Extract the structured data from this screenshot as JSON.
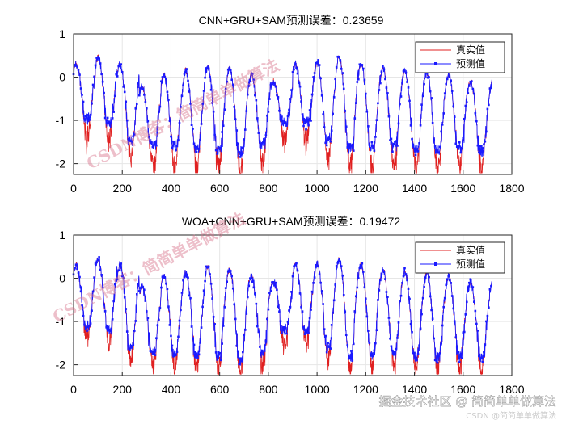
{
  "chart_data": [
    {
      "type": "line",
      "title": "CNN+GRU+SAM预测误差：0.23659",
      "xlim": [
        0,
        1800
      ],
      "ylim": [
        -2.25,
        1
      ],
      "xticks": [
        0,
        200,
        400,
        600,
        800,
        1000,
        1200,
        1400,
        1600,
        1800
      ],
      "yticks": [
        -2,
        -1,
        0,
        1
      ],
      "grid": true,
      "legend_position": "top-right",
      "series": [
        {
          "name": "真实值",
          "color": "#e02020",
          "marker": "none",
          "role": "actual"
        },
        {
          "name": "预测值",
          "color": "#1a1aff",
          "marker": "square",
          "role": "predicted",
          "low_bias": 0.45
        }
      ],
      "seasonal_cycle": {
        "period": 90,
        "peaks": [
          0.3,
          0.45,
          0.3,
          -0.2,
          0.05,
          0.15,
          0.25,
          0.2,
          0.05,
          -0.1,
          0.3,
          0.35,
          0.45,
          0.3,
          0.2,
          0.15,
          0.1,
          0.05,
          -0.1
        ],
        "troughs": [
          -1.4,
          -1.5,
          -1.9,
          -2.0,
          -2.05,
          -2.1,
          -2.1,
          -2.2,
          -2.0,
          -1.5,
          -1.5,
          -1.9,
          -2.1,
          -2.1,
          -2.05,
          -2.1,
          -2.15,
          -2.1,
          -2.15
        ],
        "n_points": 1720
      }
    },
    {
      "type": "line",
      "title": "WOA+CNN+GRU+SAM预测误差：0.19472",
      "xlim": [
        0,
        1800
      ],
      "ylim": [
        -2.25,
        1
      ],
      "xticks": [
        0,
        200,
        400,
        600,
        800,
        1000,
        1200,
        1400,
        1600,
        1800
      ],
      "yticks": [
        -2,
        -1,
        0,
        1
      ],
      "grid": true,
      "legend_position": "top-right",
      "series": [
        {
          "name": "真实值",
          "color": "#e02020",
          "marker": "none",
          "role": "actual"
        },
        {
          "name": "预测值",
          "color": "#1a1aff",
          "marker": "square",
          "role": "predicted",
          "low_bias": 0.3
        }
      ],
      "seasonal_cycle": {
        "period": 90,
        "peaks": [
          0.3,
          0.45,
          0.3,
          -0.2,
          0.05,
          0.15,
          0.25,
          0.2,
          0.05,
          -0.1,
          0.3,
          0.35,
          0.45,
          0.3,
          0.2,
          0.15,
          0.1,
          0.05,
          -0.1
        ],
        "troughs": [
          -1.4,
          -1.5,
          -1.9,
          -2.0,
          -2.05,
          -2.1,
          -2.1,
          -2.2,
          -2.0,
          -1.5,
          -1.5,
          -1.9,
          -2.1,
          -2.1,
          -2.05,
          -2.1,
          -2.15,
          -2.1,
          -2.15
        ],
        "n_points": 1720
      }
    }
  ],
  "legend_labels": {
    "actual": "真实值",
    "predicted": "预测值"
  },
  "watermarks": [
    "CSDN博客：简简单单做算法",
    "CSDN博客：简简单单做算法"
  ],
  "corner_watermark": {
    "main": "掘金技术社区 @ 简简单单做算法",
    "sub": "CSDN @简简单单做算法"
  },
  "colors": {
    "actual": "#e02020",
    "predicted": "#1a1aff",
    "grid": "#e6e6e6",
    "axes": "#262626",
    "watermark": "#d6708a"
  }
}
